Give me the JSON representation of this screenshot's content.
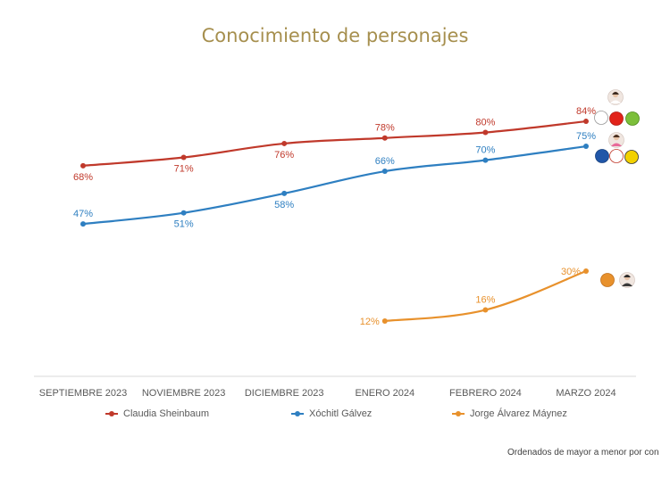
{
  "chart_data": {
    "type": "line",
    "title": "Conocimiento de personajes",
    "categories": [
      "SEPTIEMBRE 2023",
      "NOVIEMBRE 2023",
      "DICIEMBRE 2023",
      "ENERO 2024",
      "FEBRERO 2024",
      "MARZO 2024"
    ],
    "series": [
      {
        "name": "Claudia Sheinbaum",
        "color": "#c0392b",
        "values": [
          68,
          71,
          76,
          78,
          80,
          84
        ]
      },
      {
        "name": "Xóchitl Gálvez",
        "color": "#2e7fc1",
        "values": [
          47,
          51,
          58,
          66,
          70,
          75
        ]
      },
      {
        "name": "Jorge Álvarez Máynez",
        "color": "#e8912c",
        "values": [
          null,
          null,
          null,
          12,
          16,
          30
        ]
      }
    ],
    "value_suffix": "%",
    "legend_position": "bottom",
    "grid": false,
    "footnote": "Ordenados de mayor a menor por con"
  }
}
